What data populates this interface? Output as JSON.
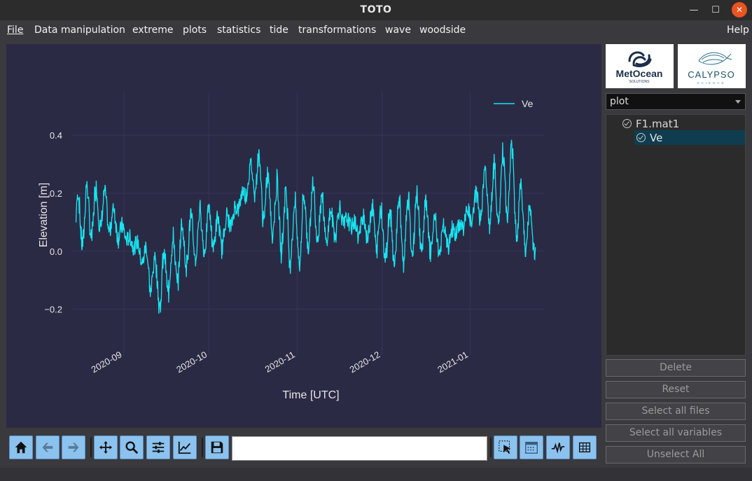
{
  "window": {
    "title": "TOTO",
    "minimize": "—",
    "maximize": "☐",
    "close": "✕"
  },
  "menu": {
    "items": [
      "File",
      "Data manipulation",
      "extreme",
      "plots",
      "statistics",
      "tide",
      "transformations",
      "wave",
      "woodside"
    ],
    "help": "Help"
  },
  "colors": {
    "plot_bg": "#2b2a45",
    "series": "#15e6f2",
    "grid": "#34345a",
    "axis_text": "#e6e6e6"
  },
  "chart_data": {
    "type": "line",
    "title": "",
    "xlabel": "Time [UTC]",
    "ylabel": "Elevation [m]",
    "xlim": [
      "2020-08-14",
      "2021-01-27"
    ],
    "ylim": [
      -0.3,
      0.55
    ],
    "x_tick_labels": [
      "2020-09",
      "2020-10",
      "2020-11",
      "2020-12",
      "2021-01"
    ],
    "x_tick_dates": [
      "2020-09-01",
      "2020-10-01",
      "2020-11-01",
      "2020-12-01",
      "2021-01-01"
    ],
    "y_ticks": [
      -0.2,
      0.0,
      0.2,
      0.4
    ],
    "y_tick_labels": [
      "−0.2",
      "0.0",
      "0.2",
      "0.4"
    ],
    "grid": true,
    "legend_position": "top-right",
    "series": [
      {
        "name": "Ve",
        "color": "#15e6f2",
        "x": [
          "2020-08-15",
          "2020-08-18",
          "2020-08-21",
          "2020-08-24",
          "2020-08-27",
          "2020-08-30",
          "2020-09-02",
          "2020-09-05",
          "2020-09-08",
          "2020-09-11",
          "2020-09-14",
          "2020-09-17",
          "2020-09-20",
          "2020-09-23",
          "2020-09-26",
          "2020-09-29",
          "2020-10-02",
          "2020-10-05",
          "2020-10-08",
          "2020-10-11",
          "2020-10-14",
          "2020-10-17",
          "2020-10-20",
          "2020-10-23",
          "2020-10-26",
          "2020-10-29",
          "2020-11-01",
          "2020-11-04",
          "2020-11-07",
          "2020-11-10",
          "2020-11-13",
          "2020-11-16",
          "2020-11-19",
          "2020-11-22",
          "2020-11-25",
          "2020-11-28",
          "2020-12-01",
          "2020-12-04",
          "2020-12-07",
          "2020-12-10",
          "2020-12-13",
          "2020-12-16",
          "2020-12-19",
          "2020-12-22",
          "2020-12-25",
          "2020-12-28",
          "2020-12-31",
          "2021-01-03",
          "2021-01-06",
          "2021-01-09",
          "2021-01-12",
          "2021-01-15",
          "2021-01-18",
          "2021-01-21",
          "2021-01-24"
        ],
        "mid": [
          0.1,
          0.12,
          0.13,
          0.15,
          0.12,
          0.08,
          0.05,
          0.02,
          -0.02,
          -0.08,
          -0.12,
          -0.05,
          -0.02,
          0.03,
          0.05,
          0.07,
          0.08,
          0.05,
          0.1,
          0.15,
          0.22,
          0.28,
          0.2,
          0.15,
          0.12,
          0.08,
          0.05,
          0.1,
          0.14,
          0.11,
          0.08,
          0.12,
          0.1,
          0.08,
          0.09,
          0.1,
          0.06,
          0.05,
          0.08,
          0.07,
          0.1,
          0.09,
          0.05,
          0.04,
          0.05,
          0.08,
          0.12,
          0.15,
          0.2,
          0.18,
          0.22,
          0.25,
          0.15,
          0.08,
          0.05
        ],
        "amp": [
          0.1,
          0.13,
          0.12,
          0.12,
          0.11,
          0.12,
          0.1,
          0.11,
          0.13,
          0.13,
          0.14,
          0.1,
          0.1,
          0.1,
          0.09,
          0.11,
          0.1,
          0.11,
          0.11,
          0.13,
          0.16,
          0.2,
          0.17,
          0.14,
          0.13,
          0.14,
          0.12,
          0.12,
          0.13,
          0.12,
          0.13,
          0.13,
          0.12,
          0.12,
          0.12,
          0.12,
          0.13,
          0.12,
          0.12,
          0.13,
          0.13,
          0.12,
          0.12,
          0.12,
          0.12,
          0.13,
          0.13,
          0.14,
          0.15,
          0.14,
          0.16,
          0.17,
          0.14,
          0.1,
          0.08
        ]
      }
    ]
  },
  "toolbar": {
    "buttons": [
      "home-icon",
      "back-arrow-icon",
      "forward-arrow-icon",
      "pan-icon",
      "zoom-icon",
      "configure-subplots-icon",
      "edit-axes-icon",
      "save-icon"
    ],
    "coordinates": "",
    "right_buttons": [
      "select-cursor-icon",
      "calendar-icon",
      "signal-icon",
      "table-icon"
    ]
  },
  "side": {
    "logo_left": {
      "line1": "MetOcean",
      "line2": "SOLUTIONS"
    },
    "logo_right": {
      "line1": "CALYPSO",
      "line2": "SCIENCE"
    },
    "plot_select": "plot",
    "tree": {
      "file": "F1.mat1",
      "variable": "Ve"
    },
    "buttons": {
      "delete": "Delete",
      "reset": "Reset",
      "select_files": "Select all files",
      "select_vars": "Select all variables",
      "unselect": "Unselect All"
    }
  }
}
